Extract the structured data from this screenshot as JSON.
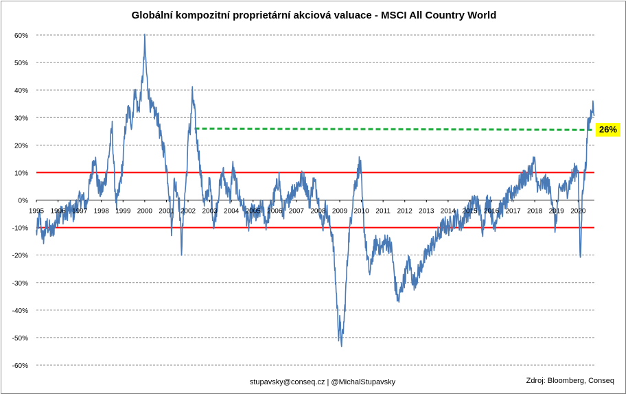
{
  "chart_data": {
    "type": "line",
    "title": "Globální kompozitní proprietární akciová valuace - MSCI All Country World",
    "xlabel": "",
    "ylabel": "",
    "x_range": [
      1995,
      2020.75
    ],
    "ylim": [
      -60,
      60
    ],
    "y_ticks": [
      "60%",
      "50%",
      "40%",
      "30%",
      "20%",
      "10%",
      "0%",
      "-10%",
      "-20%",
      "-30%",
      "-40%",
      "-50%",
      "-60%"
    ],
    "x_ticks": [
      "1995",
      "1996",
      "1997",
      "1998",
      "1999",
      "2000",
      "2001",
      "2002",
      "2003",
      "2004",
      "2005",
      "2006",
      "2007",
      "2008",
      "2009",
      "2010",
      "2011",
      "2012",
      "2013",
      "2014",
      "2015",
      "2016",
      "2017",
      "2018",
      "2019",
      "2020"
    ],
    "grid": true,
    "series": [
      {
        "color": "#4a7ab5",
        "points": [
          [
            1995.0,
            -12
          ],
          [
            1995.15,
            -6
          ],
          [
            1995.3,
            -14
          ],
          [
            1995.5,
            -9
          ],
          [
            1995.7,
            -12
          ],
          [
            1995.9,
            -8
          ],
          [
            1996.1,
            -4
          ],
          [
            1996.3,
            -6
          ],
          [
            1996.5,
            -3
          ],
          [
            1996.7,
            -5
          ],
          [
            1996.9,
            -1
          ],
          [
            1997.1,
            1
          ],
          [
            1997.3,
            -2
          ],
          [
            1997.45,
            5
          ],
          [
            1997.6,
            12
          ],
          [
            1997.7,
            17
          ],
          [
            1997.8,
            7
          ],
          [
            1997.95,
            3
          ],
          [
            1998.1,
            5
          ],
          [
            1998.25,
            10
          ],
          [
            1998.4,
            20
          ],
          [
            1998.5,
            26
          ],
          [
            1998.6,
            8
          ],
          [
            1998.7,
            -2
          ],
          [
            1998.85,
            5
          ],
          [
            1999.0,
            14
          ],
          [
            1999.1,
            26
          ],
          [
            1999.25,
            33
          ],
          [
            1999.4,
            28
          ],
          [
            1999.55,
            40
          ],
          [
            1999.7,
            32
          ],
          [
            1999.85,
            40
          ],
          [
            1999.95,
            49
          ],
          [
            2000.0,
            57
          ],
          [
            2000.1,
            44
          ],
          [
            2000.2,
            38
          ],
          [
            2000.3,
            33
          ],
          [
            2000.45,
            32
          ],
          [
            2000.6,
            30
          ],
          [
            2000.75,
            22
          ],
          [
            2000.9,
            18
          ],
          [
            2001.05,
            9
          ],
          [
            2001.15,
            1
          ],
          [
            2001.25,
            -12
          ],
          [
            2001.35,
            6
          ],
          [
            2001.5,
            4
          ],
          [
            2001.6,
            -2
          ],
          [
            2001.7,
            -17
          ],
          [
            2001.8,
            -4
          ],
          [
            2001.95,
            12
          ],
          [
            2002.05,
            28
          ],
          [
            2002.1,
            25
          ],
          [
            2002.2,
            38
          ],
          [
            2002.3,
            32
          ],
          [
            2002.4,
            22
          ],
          [
            2002.5,
            17
          ],
          [
            2002.6,
            8
          ],
          [
            2002.75,
            -2
          ],
          [
            2002.9,
            3
          ],
          [
            2003.0,
            6
          ],
          [
            2003.2,
            -9
          ],
          [
            2003.4,
            2
          ],
          [
            2003.6,
            10
          ],
          [
            2003.8,
            4
          ],
          [
            2003.95,
            1
          ],
          [
            2004.05,
            12
          ],
          [
            2004.2,
            6
          ],
          [
            2004.4,
            0
          ],
          [
            2004.6,
            -3
          ],
          [
            2004.8,
            -9
          ],
          [
            2004.95,
            -4
          ],
          [
            2005.2,
            -6
          ],
          [
            2005.4,
            -2
          ],
          [
            2005.6,
            -8
          ],
          [
            2005.8,
            -3
          ],
          [
            2006.0,
            2
          ],
          [
            2006.2,
            8
          ],
          [
            2006.35,
            -4
          ],
          [
            2006.5,
            -3
          ],
          [
            2006.7,
            2
          ],
          [
            2006.9,
            4
          ],
          [
            2007.1,
            6
          ],
          [
            2007.3,
            8
          ],
          [
            2007.5,
            4
          ],
          [
            2007.6,
            -1
          ],
          [
            2007.8,
            7
          ],
          [
            2007.95,
            3
          ],
          [
            2008.1,
            -4
          ],
          [
            2008.2,
            -10
          ],
          [
            2008.35,
            -2
          ],
          [
            2008.5,
            -8
          ],
          [
            2008.65,
            -12
          ],
          [
            2008.75,
            -22
          ],
          [
            2008.85,
            -35
          ],
          [
            2008.95,
            -48
          ],
          [
            2009.0,
            -45
          ],
          [
            2009.1,
            -52
          ],
          [
            2009.2,
            -44
          ],
          [
            2009.3,
            -30
          ],
          [
            2009.4,
            -15
          ],
          [
            2009.5,
            -8
          ],
          [
            2009.6,
            0
          ],
          [
            2009.7,
            6
          ],
          [
            2009.8,
            8
          ],
          [
            2009.9,
            13
          ],
          [
            2009.97,
            11
          ],
          [
            2010.05,
            -2
          ],
          [
            2010.15,
            -12
          ],
          [
            2010.3,
            -23
          ],
          [
            2010.4,
            -27
          ],
          [
            2010.5,
            -20
          ],
          [
            2010.7,
            -15
          ],
          [
            2010.9,
            -18
          ],
          [
            2011.0,
            -16
          ],
          [
            2011.2,
            -15
          ],
          [
            2011.4,
            -18
          ],
          [
            2011.55,
            -30
          ],
          [
            2011.7,
            -37
          ],
          [
            2011.85,
            -32
          ],
          [
            2012.0,
            -28
          ],
          [
            2012.2,
            -22
          ],
          [
            2012.4,
            -30
          ],
          [
            2012.6,
            -27
          ],
          [
            2012.8,
            -23
          ],
          [
            2013.0,
            -20
          ],
          [
            2013.2,
            -17
          ],
          [
            2013.4,
            -15
          ],
          [
            2013.6,
            -12
          ],
          [
            2013.8,
            -9
          ],
          [
            2014.0,
            -10
          ],
          [
            2014.2,
            -8
          ],
          [
            2014.4,
            -6
          ],
          [
            2014.6,
            -9
          ],
          [
            2014.8,
            -5
          ],
          [
            2015.0,
            -4
          ],
          [
            2015.2,
            0
          ],
          [
            2015.4,
            -2
          ],
          [
            2015.6,
            -10
          ],
          [
            2015.8,
            0
          ],
          [
            2015.95,
            -2
          ],
          [
            2016.1,
            -10
          ],
          [
            2016.3,
            -4
          ],
          [
            2016.5,
            -3
          ],
          [
            2016.7,
            0
          ],
          [
            2016.9,
            2
          ],
          [
            2017.1,
            4
          ],
          [
            2017.3,
            6
          ],
          [
            2017.5,
            8
          ],
          [
            2017.7,
            9
          ],
          [
            2017.9,
            12
          ],
          [
            2017.98,
            15
          ],
          [
            2018.05,
            8
          ],
          [
            2018.2,
            4
          ],
          [
            2018.4,
            6
          ],
          [
            2018.6,
            6
          ],
          [
            2018.8,
            1
          ],
          [
            2018.9,
            -7
          ],
          [
            2018.95,
            -10
          ],
          [
            2019.1,
            2
          ],
          [
            2019.3,
            5
          ],
          [
            2019.5,
            4
          ],
          [
            2019.7,
            8
          ],
          [
            2019.9,
            11
          ],
          [
            2020.0,
            13
          ],
          [
            2020.05,
            -5
          ],
          [
            2020.1,
            -24
          ],
          [
            2020.2,
            4
          ],
          [
            2020.35,
            12
          ],
          [
            2020.45,
            27
          ],
          [
            2020.55,
            29
          ],
          [
            2020.65,
            35
          ],
          [
            2020.75,
            31
          ]
        ]
      }
    ],
    "reference_lines": [
      {
        "y": 10,
        "color": "#ff0000",
        "style": "solid"
      },
      {
        "y": -10,
        "color": "#ff0000",
        "style": "solid"
      },
      {
        "y_start": 26,
        "y_end": 25.5,
        "x_start": 2002.3,
        "x_end": 2020.75,
        "color": "#1aaa3a",
        "style": "dashed"
      }
    ],
    "annotation": {
      "text": "26%",
      "background": "#ffff00"
    }
  },
  "footer": {
    "contact": "stupavsky@conseq.cz  |  @MichalStupavsky",
    "source": "Zdroj: Bloomberg, Conseq"
  }
}
